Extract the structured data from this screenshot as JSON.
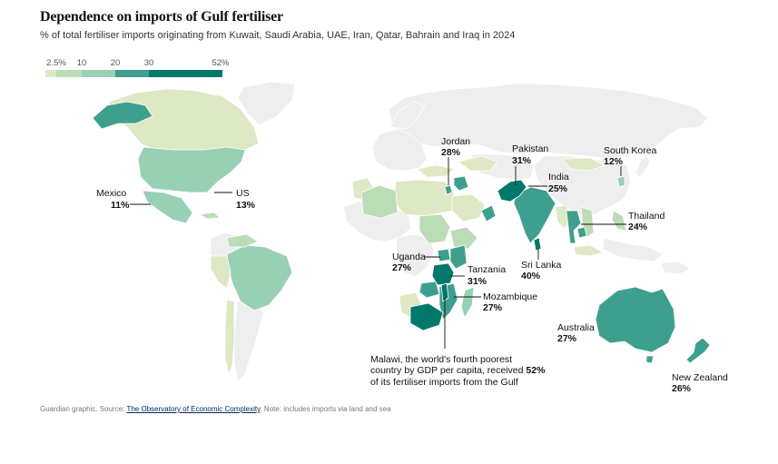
{
  "title": "Dependence on imports of Gulf fertiliser",
  "subtitle": "% of total fertiliser imports originating from Kuwait, Saudi Arabia, UAE, Iran, Qatar, Bahrain and Iraq in 2024",
  "legend": {
    "ticks": [
      "2.5%",
      "10",
      "20",
      "30",
      "52%"
    ],
    "bins": [
      {
        "from": 0,
        "to": 2.5,
        "color": "#dde8c4"
      },
      {
        "from": 2.5,
        "to": 10,
        "color": "#bcdcb8"
      },
      {
        "from": 10,
        "to": 20,
        "color": "#98d0b4"
      },
      {
        "from": 20,
        "to": 30,
        "color": "#3f9f8e"
      },
      {
        "from": 30,
        "to": 52,
        "color": "#00796b"
      }
    ]
  },
  "colors": {
    "land_nodata": "#eeeeee",
    "border": "#ffffff",
    "bin1": "#dde8c4",
    "bin2": "#bcdcb8",
    "bin3": "#98d0b4",
    "bin4": "#3f9f8e",
    "bin5": "#00796b"
  },
  "annotations": [
    {
      "id": "mexico",
      "name": "Mexico",
      "value": "11%"
    },
    {
      "id": "us",
      "name": "US",
      "value": "13%"
    },
    {
      "id": "jordan",
      "name": "Jordan",
      "value": "28%"
    },
    {
      "id": "pakistan",
      "name": "Pakistan",
      "value": "31%"
    },
    {
      "id": "india",
      "name": "India",
      "value": "25%"
    },
    {
      "id": "south-korea",
      "name": "South Korea",
      "value": "12%"
    },
    {
      "id": "thailand",
      "name": "Thailand",
      "value": "24%"
    },
    {
      "id": "sri-lanka",
      "name": "Sri Lanka",
      "value": "40%"
    },
    {
      "id": "uganda",
      "name": "Uganda",
      "value": "27%"
    },
    {
      "id": "tanzania",
      "name": "Tanzania",
      "value": "31%"
    },
    {
      "id": "mozambique",
      "name": "Mozambique",
      "value": "27%"
    },
    {
      "id": "australia",
      "name": "Australia",
      "value": "27%"
    },
    {
      "id": "new-zealand",
      "name": "New Zealand",
      "value": "26%"
    }
  ],
  "malawi_note": {
    "line1": "Malawi, the world's fourth poorest",
    "line2_prefix": "country by GDP per capita, received ",
    "line2_value": "52%",
    "line3": "of its fertiliser imports from the Gulf"
  },
  "footer": {
    "prefix": "Guardian graphic. Source: ",
    "source_link": "The Observatory of Economic Complexity",
    "note": ". Note: includes imports via land and sea"
  }
}
